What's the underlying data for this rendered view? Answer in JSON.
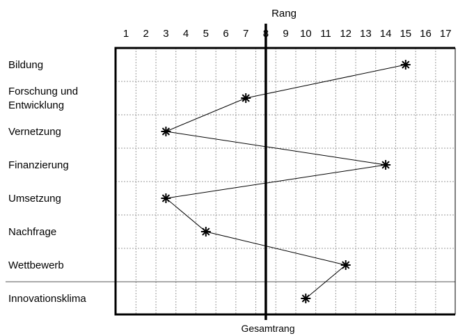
{
  "chart_data": {
    "type": "line",
    "x_axis_label": "Rang",
    "x_ticks": [
      1,
      2,
      3,
      4,
      5,
      6,
      7,
      8,
      9,
      10,
      11,
      12,
      13,
      14,
      15,
      16,
      17
    ],
    "xlim": [
      1,
      17
    ],
    "categories": [
      [
        "Bildung"
      ],
      [
        "Forschung und",
        "Entwicklung"
      ],
      [
        "Vernetzung"
      ],
      [
        "Finanzierung"
      ],
      [
        "Umsetzung"
      ],
      [
        "Nachfrage"
      ],
      [
        "Wettbewerb"
      ],
      [
        "Innovationsklima"
      ]
    ],
    "values": [
      15,
      7,
      3,
      14,
      3,
      5,
      12,
      10
    ],
    "reference_line": {
      "x": 8,
      "label": "Gesamtrang"
    },
    "grid": true,
    "marker": "asterisk",
    "colors": {
      "line": "#000000",
      "grid": "#9a9a9a",
      "frame": "#000000"
    }
  }
}
